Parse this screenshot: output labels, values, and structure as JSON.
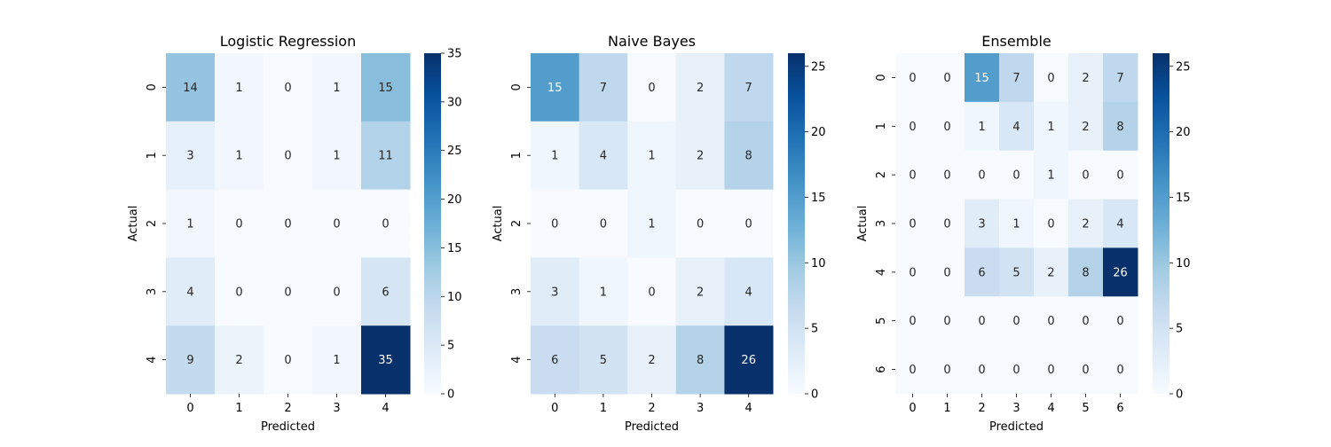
{
  "chart_data": [
    {
      "type": "heatmap",
      "title": "Logistic Regression",
      "xlabel": "Predicted",
      "ylabel": "Actual",
      "x_categories": [
        "0",
        "1",
        "2",
        "3",
        "4"
      ],
      "y_categories": [
        "0",
        "1",
        "2",
        "3",
        "4"
      ],
      "values": [
        [
          14,
          1,
          0,
          1,
          15
        ],
        [
          3,
          1,
          0,
          1,
          11
        ],
        [
          1,
          0,
          0,
          0,
          0
        ],
        [
          4,
          0,
          0,
          0,
          6
        ],
        [
          9,
          2,
          0,
          1,
          35
        ]
      ],
      "colorbar": {
        "min": 0,
        "max": 35,
        "ticks": [
          "0",
          "5",
          "10",
          "15",
          "20",
          "25",
          "30",
          "35"
        ]
      },
      "colormap": "Blues"
    },
    {
      "type": "heatmap",
      "title": "Naive Bayes",
      "xlabel": "Predicted",
      "ylabel": "Actual",
      "x_categories": [
        "0",
        "1",
        "2",
        "3",
        "4"
      ],
      "y_categories": [
        "0",
        "1",
        "2",
        "3",
        "4"
      ],
      "values": [
        [
          15,
          7,
          0,
          2,
          7
        ],
        [
          1,
          4,
          1,
          2,
          8
        ],
        [
          0,
          0,
          1,
          0,
          0
        ],
        [
          3,
          1,
          0,
          2,
          4
        ],
        [
          6,
          5,
          2,
          8,
          26
        ]
      ],
      "colorbar": {
        "min": 0,
        "max": 26,
        "ticks": [
          "0",
          "5",
          "10",
          "15",
          "20",
          "25"
        ]
      },
      "colormap": "Blues"
    },
    {
      "type": "heatmap",
      "title": "Ensemble",
      "xlabel": "Predicted",
      "ylabel": "Actual",
      "x_categories": [
        "0",
        "1",
        "2",
        "3",
        "4",
        "5",
        "6"
      ],
      "y_categories": [
        "0",
        "1",
        "2",
        "3",
        "4",
        "5",
        "6"
      ],
      "values": [
        [
          0,
          0,
          15,
          7,
          0,
          2,
          7
        ],
        [
          0,
          0,
          1,
          4,
          1,
          2,
          8
        ],
        [
          0,
          0,
          0,
          0,
          1,
          0,
          0
        ],
        [
          0,
          0,
          3,
          1,
          0,
          2,
          4
        ],
        [
          0,
          0,
          6,
          5,
          2,
          8,
          26
        ],
        [
          0,
          0,
          0,
          0,
          0,
          0,
          0
        ],
        [
          0,
          0,
          0,
          0,
          0,
          0,
          0
        ]
      ],
      "colorbar": {
        "min": 0,
        "max": 26,
        "ticks": [
          "0",
          "5",
          "10",
          "15",
          "20",
          "25"
        ]
      },
      "colormap": "Blues"
    }
  ]
}
